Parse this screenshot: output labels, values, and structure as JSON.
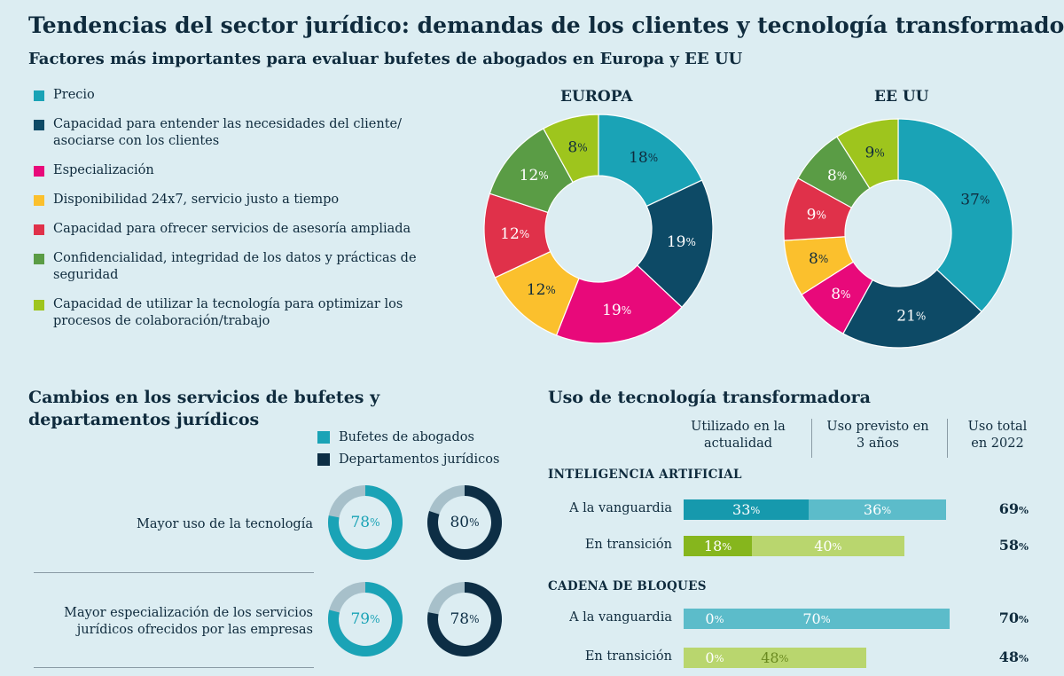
{
  "title": "Tendencias del sector jurídico: demandas de los clientes y tecnología transformadora",
  "subtitle": "Factores más importantes para evaluar bufetes de abogados en Europa y EE UU",
  "legend": [
    {
      "label": "Precio",
      "color": "#1aa3b6"
    },
    {
      "label": "Capacidad para entender las necesidades del cliente/ asociarse con los clientes",
      "color": "#0d4a66"
    },
    {
      "label": "Especialización",
      "color": "#e8097a"
    },
    {
      "label": "Disponibilidad 24x7, servicio justo a tiempo",
      "color": "#fbc02d"
    },
    {
      "label": "Capacidad para ofrecer servicios de asesoría ampliada",
      "color": "#e0314a"
    },
    {
      "label": "Confidencialidad, integridad de los datos y prácticas de seguridad",
      "color": "#5a9c45"
    },
    {
      "label": "Capacidad de utilizar la tecnología para optimizar los procesos de colaboración/trabajo",
      "color": "#9ec51d"
    }
  ],
  "pct_sign": "%",
  "chart_data": [
    {
      "type": "pie",
      "title": "EUROPA",
      "categories": [
        "Precio",
        "Capacidad para entender las necesidades del cliente/ asociarse con los clientes",
        "Especialización",
        "Disponibilidad 24x7, servicio justo a tiempo",
        "Capacidad para ofrecer servicios de asesoría ampliada",
        "Confidencialidad, integridad de los datos y prácticas de seguridad",
        "Capacidad de utilizar la tecnología para optimizar los procesos de colaboración/trabajo"
      ],
      "values": [
        18,
        19,
        19,
        12,
        12,
        12,
        8
      ],
      "unit": "%"
    },
    {
      "type": "pie",
      "title": "EE UU",
      "categories": [
        "Precio",
        "Capacidad para entender las necesidades del cliente/ asociarse con los clientes",
        "Especialización",
        "Disponibilidad 24x7, servicio justo a tiempo",
        "Capacidad para ofrecer servicios de asesoría ampliada",
        "Confidencialidad, integridad de los datos y prácticas de seguridad",
        "Capacidad de utilizar la tecnología para optimizar los procesos de colaboración/trabajo"
      ],
      "values": [
        37,
        21,
        8,
        8,
        9,
        8,
        9
      ],
      "unit": "%"
    },
    {
      "type": "pie",
      "title": "Cambios en los servicios de bufetes y departamentos jurídicos",
      "series_names": [
        "Bufetes de abogados",
        "Departamentos jurídicos"
      ],
      "series_colors": [
        "#1aa3b6",
        "#0d2e45"
      ],
      "remainder_color": "#a7c0ca",
      "rows": [
        {
          "label": "Mayor uso de la tecnología",
          "values": [
            78,
            80
          ]
        },
        {
          "label": "Mayor especialización de los servicios jurídicos ofrecidos por las empresas",
          "values": [
            79,
            78
          ]
        }
      ],
      "unit": "%"
    },
    {
      "type": "bar",
      "title": "Uso de tecnología transformadora",
      "column_headers": [
        "Utilizado en la actualidad",
        "Uso previsto en 3 años",
        "Uso total en 2022"
      ],
      "series_names": [
        "Utilizado en la actualidad",
        "Uso previsto en 3 años"
      ],
      "groups": [
        {
          "name": "INTELIGENCIA ARTIFICIAL",
          "rows": [
            {
              "label": "A la vanguardia",
              "current": 33,
              "planned": 36,
              "total": 69,
              "colors": [
                "#1699ad",
                "#5cbcca"
              ],
              "planned_text": "#ffffff"
            },
            {
              "label": "En transición",
              "current": 18,
              "planned": 40,
              "total": 58,
              "colors": [
                "#86b61d",
                "#b9d66e"
              ],
              "planned_text": "#ffffff"
            }
          ]
        },
        {
          "name": "CADENA DE BLOQUES",
          "rows": [
            {
              "label": "A la vanguardia",
              "current": 0,
              "planned": 70,
              "total": 70,
              "colors": [
                "#1699ad",
                "#5cbcca"
              ],
              "planned_text": "#ffffff"
            },
            {
              "label": "En transición",
              "current": 0,
              "planned": 48,
              "total": 48,
              "colors": [
                "#86b61d",
                "#b9d66e"
              ],
              "planned_text": "#6a8a20"
            }
          ]
        }
      ],
      "unit": "%"
    }
  ]
}
